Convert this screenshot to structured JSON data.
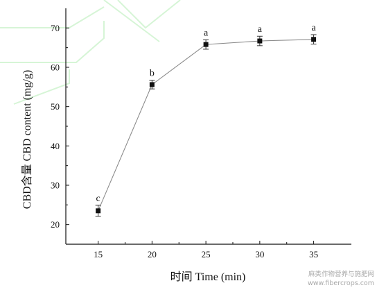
{
  "chart_data": {
    "type": "line",
    "x": [
      15,
      20,
      25,
      30,
      35
    ],
    "series": [
      {
        "values": [
          23.5,
          55.6,
          65.8,
          66.7,
          67.1
        ],
        "errors": [
          1.4,
          1.1,
          1.2,
          1.2,
          1.2
        ],
        "labels": [
          "c",
          "b",
          "a",
          "a",
          "a"
        ],
        "marker": "square",
        "marker_color": "#111111",
        "line_color": "#8c8c8c"
      }
    ],
    "xlabel": "时间 Time (min)",
    "ylabel": "CBD含量 CBD content (mg/g)",
    "xlim": [
      12,
      38.5
    ],
    "ylim": [
      15,
      75
    ],
    "xticks": [
      15,
      20,
      25,
      30,
      35
    ],
    "yticks": [
      20,
      30,
      40,
      50,
      60,
      70
    ],
    "grid": false,
    "legend": "none"
  },
  "watermark": {
    "line1": "麻类作物营养与施肥网",
    "line2": "www.fibercrops.com"
  }
}
